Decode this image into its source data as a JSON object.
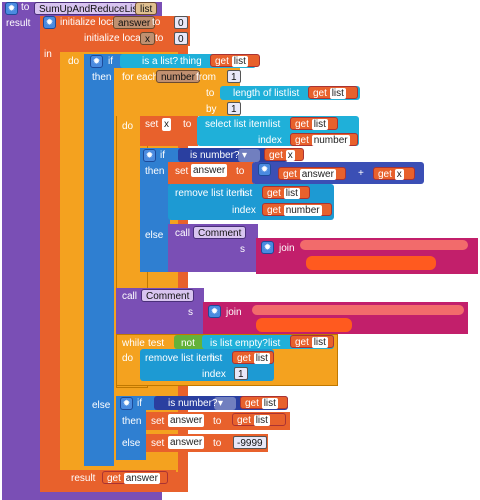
{
  "proc": {
    "to": "to",
    "name": "SumUpAndReduceList",
    "param": "list",
    "result": "result"
  },
  "init1": {
    "label": "initialize local",
    "var": "answer",
    "to": "to",
    "value": "0"
  },
  "init2": {
    "label": "initialize local",
    "var": "x",
    "to": "to",
    "value": "0"
  },
  "in_label": "in",
  "do_label": "do",
  "if1": {
    "if": "if",
    "test": "is a list?",
    "thing": "thing",
    "get": "get",
    "var": "list",
    "then": "then"
  },
  "foreach": {
    "label": "for each",
    "var": "number",
    "from": "from",
    "from_val": "1",
    "to": "to",
    "length": "length of list",
    "list_kw": "list",
    "get": "get",
    "list_var": "list",
    "by": "by",
    "by_val": "1",
    "do": "do"
  },
  "setx": {
    "set": "set",
    "var": "x",
    "to": "to",
    "select": "select list item",
    "list_kw": "list",
    "get": "get",
    "list_var": "list",
    "index": "index",
    "index_var": "number"
  },
  "if2": {
    "if": "if",
    "is_number": "is number?",
    "get": "get",
    "var": "x",
    "then": "then",
    "else": "else"
  },
  "setanswer": {
    "set": "set",
    "var": "answer",
    "to": "to",
    "get1": "get",
    "var1": "answer",
    "plus": "+",
    "get2": "get",
    "var2": "x"
  },
  "remove1": {
    "label": "remove list item",
    "list_kw": "list",
    "get": "get",
    "list_var": "list",
    "index": "index",
    "index_var": "number"
  },
  "call1": {
    "call": "call",
    "proc": "Comment",
    "s": "s",
    "join": "join"
  },
  "call2": {
    "call": "call",
    "proc": "Comment",
    "s": "s",
    "join": "join"
  },
  "while": {
    "while": "while",
    "test": "test",
    "not": "not",
    "is_empty": "is list empty?",
    "list_kw": "list",
    "get": "get",
    "list_var": "list",
    "do": "do"
  },
  "remove2": {
    "label": "remove list item",
    "list_kw": "list",
    "get": "get",
    "list_var": "list",
    "index": "index",
    "index_val": "1"
  },
  "else1": {
    "else": "else",
    "if": "if",
    "is_number": "is number?",
    "get": "get",
    "var": "list",
    "then": "then",
    "set1": "set",
    "var1": "answer",
    "to1": "to",
    "get1": "get",
    "val1": "list",
    "else2": "else",
    "set2": "set",
    "var2": "answer",
    "to2": "to",
    "val2": "-9999"
  },
  "result": {
    "label": "result",
    "get": "get",
    "var": "answer"
  }
}
